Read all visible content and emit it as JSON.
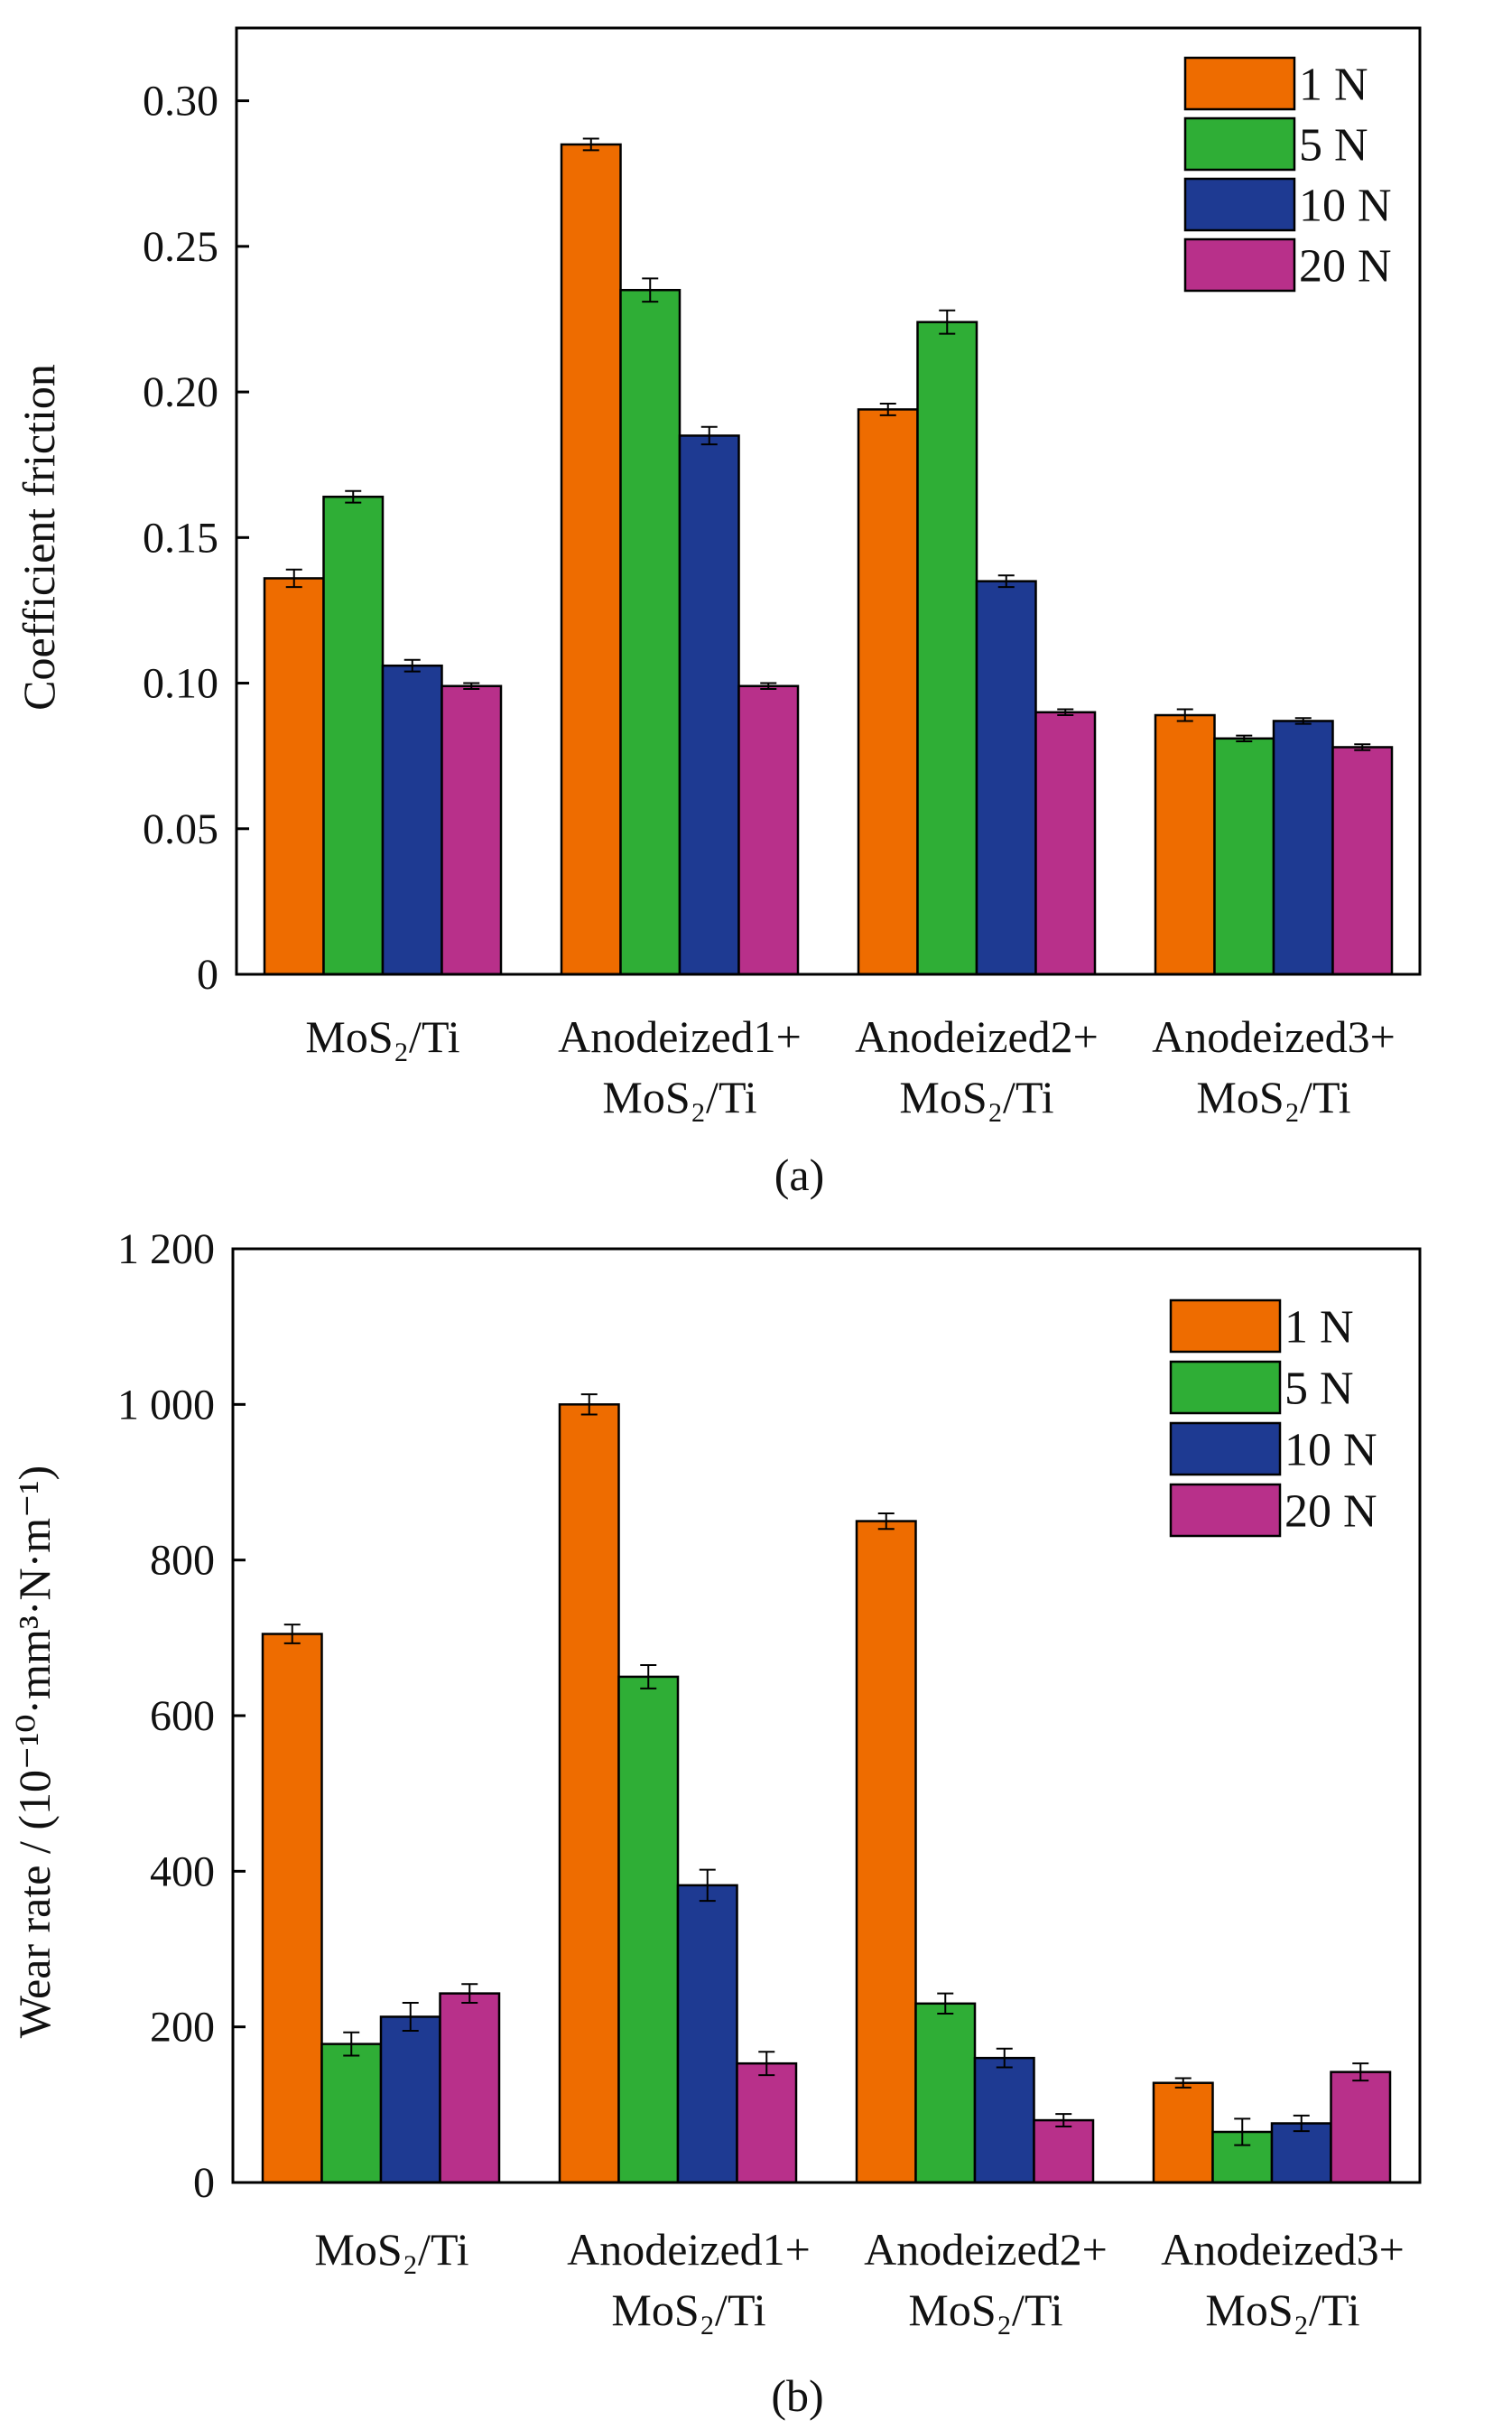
{
  "chart_data": [
    {
      "type": "bar",
      "panel_label": "(a)",
      "title": "",
      "xlabel": "",
      "ylabel": "Coefficient friction",
      "ylim": [
        0,
        0.325
      ],
      "yticks": [
        0,
        0.05,
        0.1,
        0.15,
        0.2,
        0.25,
        0.3
      ],
      "ytick_labels": [
        "0",
        "0.05",
        "0.10",
        "0.15",
        "0.20",
        "0.25",
        "0.30"
      ],
      "categories": [
        [
          "MoS₂/Ti"
        ],
        [
          "Anodeized1+",
          "MoS₂/Ti"
        ],
        [
          "Anodeized2+",
          "MoS₂/Ti"
        ],
        [
          "Anodeized3+",
          "MoS₂/Ti"
        ]
      ],
      "legend_position": "top-right",
      "grid": false,
      "series": [
        {
          "name": "1 N",
          "color": "#ee6c00",
          "values": [
            0.136,
            0.285,
            0.194,
            0.089
          ],
          "errors": [
            0.003,
            0.002,
            0.002,
            0.002
          ]
        },
        {
          "name": "5 N",
          "color": "#2fae36",
          "values": [
            0.164,
            0.235,
            0.224,
            0.081
          ],
          "errors": [
            0.002,
            0.004,
            0.004,
            0.001
          ]
        },
        {
          "name": "10 N",
          "color": "#1e3a92",
          "values": [
            0.106,
            0.185,
            0.135,
            0.087
          ],
          "errors": [
            0.002,
            0.003,
            0.002,
            0.001
          ]
        },
        {
          "name": "20 N",
          "color": "#b8308a",
          "values": [
            0.099,
            0.099,
            0.09,
            0.078
          ],
          "errors": [
            0.001,
            0.001,
            0.001,
            0.001
          ]
        }
      ]
    },
    {
      "type": "bar",
      "panel_label": "(b)",
      "title": "",
      "xlabel": "",
      "ylabel": "Wear rate / (10⁻¹⁰·mm³·N·m⁻¹)",
      "ylim": [
        0,
        1200
      ],
      "yticks": [
        0,
        200,
        400,
        600,
        800,
        1000,
        1200
      ],
      "ytick_labels": [
        "0",
        "200",
        "400",
        "600",
        "800",
        "1 000",
        "1 200"
      ],
      "categories": [
        [
          "MoS₂/Ti"
        ],
        [
          "Anodeized1+",
          "MoS₂/Ti"
        ],
        [
          "Anodeized2+",
          "MoS₂/Ti"
        ],
        [
          "Anodeized3+",
          "MoS₂/Ti"
        ]
      ],
      "legend_position": "top-right",
      "grid": false,
      "series": [
        {
          "name": "1 N",
          "color": "#ee6c00",
          "values": [
            705,
            1000,
            850,
            128
          ],
          "errors": [
            12,
            13,
            10,
            6
          ]
        },
        {
          "name": "5 N",
          "color": "#2fae36",
          "values": [
            178,
            650,
            230,
            65
          ],
          "errors": [
            15,
            15,
            13,
            17
          ]
        },
        {
          "name": "10 N",
          "color": "#1e3a92",
          "values": [
            213,
            382,
            160,
            76
          ],
          "errors": [
            18,
            20,
            12,
            10
          ]
        },
        {
          "name": "20 N",
          "color": "#b8308a",
          "values": [
            243,
            153,
            80,
            142
          ],
          "errors": [
            12,
            15,
            8,
            11
          ]
        }
      ]
    }
  ]
}
